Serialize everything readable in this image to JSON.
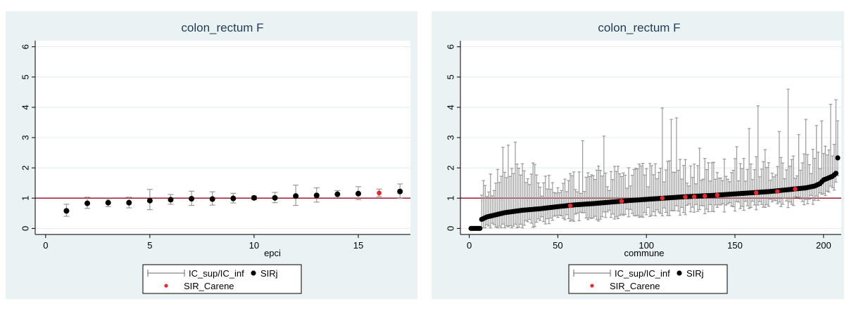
{
  "colors": {
    "refline": "#9e1b32",
    "sirj": "#000000",
    "sir_carene": "#e8282b",
    "ci": "#999999",
    "panel": "#eaf2f3"
  },
  "chart_data": [
    {
      "type": "scatter",
      "title": "colon_rectum F",
      "xlabel": "epci",
      "ylabel": "",
      "xlim": [
        -0.5,
        17.5
      ],
      "ylim": [
        -0.2,
        6.2
      ],
      "xticks": [
        0,
        5,
        10,
        15
      ],
      "yticks": [
        0,
        1,
        2,
        3,
        4,
        5,
        6
      ],
      "reference_line": 1,
      "grid": true,
      "legend": {
        "position": "bottom",
        "entries": [
          "IC_sup/IC_inf",
          "SIRj",
          "SIR_Carene"
        ]
      },
      "points": [
        {
          "x": 1,
          "y": 0.58,
          "lo": 0.4,
          "hi": 0.8,
          "carene": false
        },
        {
          "x": 2,
          "y": 0.83,
          "lo": 0.66,
          "hi": 1.03,
          "carene": false
        },
        {
          "x": 3,
          "y": 0.85,
          "lo": 0.72,
          "hi": 0.98,
          "carene": false
        },
        {
          "x": 4,
          "y": 0.85,
          "lo": 0.68,
          "hi": 1.03,
          "carene": false
        },
        {
          "x": 5,
          "y": 0.92,
          "lo": 0.62,
          "hi": 1.29,
          "carene": false
        },
        {
          "x": 6,
          "y": 0.95,
          "lo": 0.8,
          "hi": 1.12,
          "carene": false
        },
        {
          "x": 7,
          "y": 0.98,
          "lo": 0.76,
          "hi": 1.23,
          "carene": false
        },
        {
          "x": 8,
          "y": 0.97,
          "lo": 0.77,
          "hi": 1.21,
          "carene": false
        },
        {
          "x": 9,
          "y": 0.99,
          "lo": 0.84,
          "hi": 1.16,
          "carene": false
        },
        {
          "x": 10,
          "y": 1.01,
          "lo": 0.95,
          "hi": 1.07,
          "carene": false
        },
        {
          "x": 11,
          "y": 1.01,
          "lo": 0.85,
          "hi": 1.19,
          "carene": false
        },
        {
          "x": 12,
          "y": 1.07,
          "lo": 0.76,
          "hi": 1.43,
          "carene": false
        },
        {
          "x": 13,
          "y": 1.09,
          "lo": 0.87,
          "hi": 1.34,
          "carene": false
        },
        {
          "x": 14,
          "y": 1.13,
          "lo": 1.02,
          "hi": 1.25,
          "carene": false
        },
        {
          "x": 15,
          "y": 1.15,
          "lo": 0.95,
          "hi": 1.38,
          "carene": false
        },
        {
          "x": 16,
          "y": 1.17,
          "lo": 1.05,
          "hi": 1.3,
          "carene": true
        },
        {
          "x": 17,
          "y": 1.22,
          "lo": 0.99,
          "hi": 1.47,
          "carene": false
        }
      ]
    },
    {
      "type": "scatter",
      "title": "colon_rectum F",
      "xlabel": "commune",
      "ylabel": "",
      "xlim": [
        -5,
        210
      ],
      "ylim": [
        -0.2,
        6.2
      ],
      "xticks": [
        0,
        50,
        100,
        150,
        200
      ],
      "yticks": [
        0,
        1,
        2,
        3,
        4,
        5,
        6
      ],
      "reference_line": 1,
      "grid": true,
      "n_points": 208,
      "sir_profile": [
        [
          1,
          0
        ],
        [
          6,
          0
        ],
        [
          7,
          0.3
        ],
        [
          10,
          0.38
        ],
        [
          20,
          0.52
        ],
        [
          30,
          0.6
        ],
        [
          40,
          0.65
        ],
        [
          50,
          0.72
        ],
        [
          60,
          0.78
        ],
        [
          70,
          0.82
        ],
        [
          80,
          0.87
        ],
        [
          90,
          0.92
        ],
        [
          100,
          0.96
        ],
        [
          110,
          1.0
        ],
        [
          120,
          1.04
        ],
        [
          130,
          1.07
        ],
        [
          140,
          1.1
        ],
        [
          150,
          1.14
        ],
        [
          160,
          1.18
        ],
        [
          170,
          1.22
        ],
        [
          180,
          1.28
        ],
        [
          190,
          1.34
        ],
        [
          195,
          1.4
        ],
        [
          198,
          1.48
        ],
        [
          200,
          1.6
        ],
        [
          205,
          1.72
        ],
        [
          207,
          1.82
        ],
        [
          208,
          2.33
        ]
      ],
      "carene_points": [
        {
          "x": 57,
          "y": 0.75
        },
        {
          "x": 86,
          "y": 0.9
        },
        {
          "x": 109,
          "y": 1.0
        },
        {
          "x": 122,
          "y": 1.04
        },
        {
          "x": 127,
          "y": 1.05
        },
        {
          "x": 133,
          "y": 1.07
        },
        {
          "x": 140,
          "y": 1.1
        },
        {
          "x": 162,
          "y": 1.18
        },
        {
          "x": 174,
          "y": 1.22
        },
        {
          "x": 184,
          "y": 1.3
        }
      ],
      "ci_peaks": [
        {
          "x": 180,
          "hi": 4.6
        },
        {
          "x": 207,
          "hi": 4.25
        },
        {
          "x": 204,
          "hi": 4.1
        },
        {
          "x": 163,
          "hi": 4.05
        },
        {
          "x": 109,
          "hi": 3.98
        },
        {
          "x": 117,
          "hi": 3.65
        },
        {
          "x": 114,
          "hi": 3.6
        },
        {
          "x": 190,
          "hi": 3.6
        },
        {
          "x": 199,
          "hi": 3.55
        },
        {
          "x": 196,
          "hi": 3.4
        },
        {
          "x": 158,
          "hi": 3.3
        },
        {
          "x": 175,
          "hi": 3.2
        },
        {
          "x": 186,
          "hi": 3.1
        },
        {
          "x": 76,
          "hi": 3.05
        },
        {
          "x": 64,
          "hi": 2.9
        },
        {
          "x": 26,
          "hi": 2.85
        },
        {
          "x": 22,
          "hi": 2.75
        },
        {
          "x": 19,
          "hi": 2.68
        },
        {
          "x": 130,
          "hi": 2.65
        },
        {
          "x": 151,
          "hi": 2.7
        },
        {
          "x": 167,
          "hi": 2.6
        }
      ],
      "legend": {
        "position": "bottom",
        "entries": [
          "IC_sup/IC_inf",
          "SIRj",
          "SIR_Carene"
        ]
      }
    }
  ]
}
